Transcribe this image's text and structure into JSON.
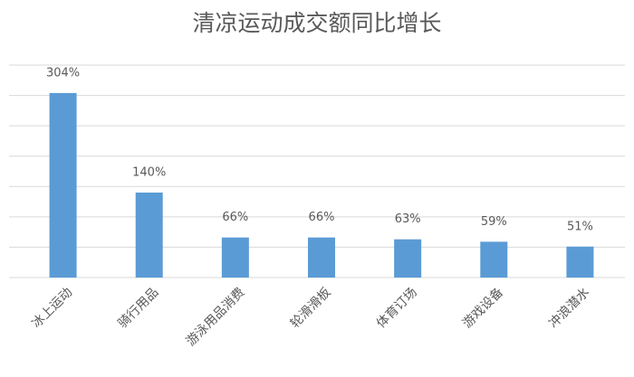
{
  "chart_data": {
    "type": "bar",
    "title": "清凉运动成交额同比增长",
    "categories": [
      "冰上运动",
      "骑行用品",
      "游泳用品消费",
      "轮滑滑板",
      "体育订场",
      "游戏设备",
      "冲浪潜水"
    ],
    "values": [
      304,
      140,
      66,
      66,
      63,
      59,
      51
    ],
    "value_labels": [
      "304%",
      "140%",
      "66%",
      "66%",
      "63%",
      "59%",
      "51%"
    ],
    "color": "#5b9bd5",
    "ylim": [
      0,
      350
    ],
    "yticks": [
      0,
      50,
      100,
      150,
      200,
      250,
      300,
      350
    ],
    "grid": true
  }
}
